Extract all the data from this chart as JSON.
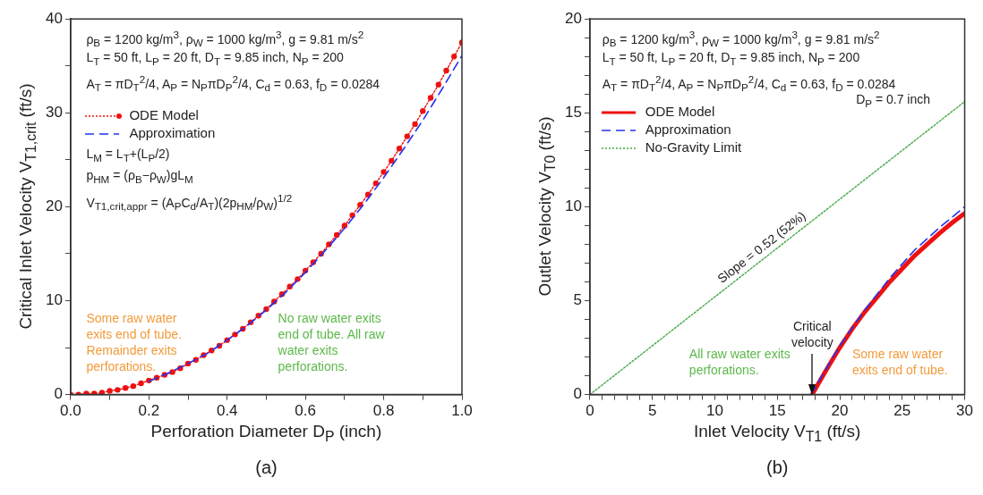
{
  "chart_data": [
    {
      "type": "line",
      "xlabel": "Perforation Diameter D$_{P}$ (inch)",
      "ylabel": "Critical Inlet Velocity V$_{T1,crit}$ (ft/s)",
      "xlim": [
        0,
        1
      ],
      "ylim": [
        0,
        40
      ],
      "xticks": [
        {
          "value": 0,
          "label": "0.0"
        },
        {
          "value": 0.1,
          "label": null
        },
        0.2,
        {
          "value": 0.3,
          "label": null
        },
        0.4,
        {
          "value": 0.5,
          "label": null
        },
        0.6,
        {
          "value": 0.7,
          "label": null
        },
        0.8,
        {
          "value": 0.9,
          "label": null
        },
        {
          "value": 1,
          "label": "1.0"
        }
      ],
      "yticks": [
        0,
        {
          "value": 5,
          "label": null
        },
        10,
        {
          "value": 15,
          "label": null
        },
        20,
        {
          "value": 25,
          "label": null
        },
        30,
        {
          "value": 35,
          "label": null
        },
        40
      ],
      "legend": "top left",
      "series": [
        {
          "name": "ODE Model",
          "color": "#ee1111",
          "line_style": "dotted",
          "marker": "circle",
          "x": [
            0,
            0.02,
            0.04,
            0.06,
            0.08,
            0.1,
            0.12,
            0.14,
            0.16,
            0.18,
            0.2,
            0.22,
            0.24,
            0.26,
            0.28,
            0.3,
            0.32,
            0.34,
            0.36,
            0.38,
            0.4,
            0.42,
            0.44,
            0.46,
            0.48,
            0.5,
            0.52,
            0.54,
            0.56,
            0.58,
            0.6,
            0.62,
            0.64,
            0.66,
            0.68,
            0.7,
            0.72,
            0.74,
            0.76,
            0.78,
            0.8,
            0.82,
            0.84,
            0.86,
            0.88,
            0.9,
            0.92,
            0.94,
            0.96,
            0.98,
            1
          ],
          "values": [
            0,
            0,
            0.1,
            0.1,
            0.2,
            0.4,
            0.5,
            0.7,
            0.9,
            1.2,
            1.5,
            1.8,
            2.1,
            2.4,
            2.8,
            3.3,
            3.7,
            4.2,
            4.7,
            5.2,
            5.8,
            6.4,
            7,
            7.7,
            8.4,
            9.1,
            9.9,
            10.7,
            11.5,
            12.3,
            13.2,
            14.1,
            15,
            16,
            17,
            18,
            19.1,
            20.2,
            21.3,
            22.5,
            23.7,
            24.9,
            26.2,
            27.5,
            28.8,
            30.2,
            31.6,
            33,
            34.5,
            36,
            37.5
          ]
        },
        {
          "name": "Approximation",
          "color": "#2233ee",
          "line_style": "dashed",
          "marker": "none",
          "x": [
            0.2,
            0.25,
            0.3,
            0.35,
            0.4,
            0.45,
            0.5,
            0.55,
            0.6,
            0.65,
            0.7,
            0.75,
            0.8,
            0.85,
            0.9,
            0.95,
            1
          ],
          "values": [
            1.4,
            2.3,
            3.3,
            4.4,
            5.8,
            7.3,
            9,
            10.9,
            13,
            15.3,
            17.7,
            20.3,
            23.1,
            26.1,
            29.2,
            32.6,
            36.1
          ]
        }
      ],
      "annotations": [
        "ρ$_{B}$ = 1200 kg/m$^{3}$, ρ$_{W}$ = 1000 kg/m$^{3}$, g = 9.81 m/s$^{2}$",
        "L$_{T}$ = 50 ft, L$_{P}$ = 20 ft, D$_{T}$ = 9.85 inch, N$_{P}$ = 200",
        "A$_{T}$ = πD$_{T}$$^{2}$/4, A$_{P}$ = N$_{P}$πD$_{P}$$^{2}$/4, C$_{d}$ = 0.63, f$_{D}$ = 0.0284",
        "L$_{M}$ = L$_{T}$+(L$_{P}$/2)",
        "p$_{HM}$ = (ρ$_{B}$−ρ$_{W}$)gL$_{M}$",
        "V$_{T1,crit,appr}$ = (A$_{P}$C$_{d}$/A$_{T}$)(2p$_{HM}$/ρ$_{W}$)$^{1/2}$",
        "Some raw water exits end of tube. Remainder exits perforations.",
        "No raw water exits end of tube. All raw water exits perforations.",
        "(a)"
      ]
    },
    {
      "type": "line",
      "xlabel": "Inlet Velocity V$_{T1}$ (ft/s)",
      "ylabel": "Outlet Velocity V$_{T0}$ (ft/s)",
      "xlim": [
        0,
        30
      ],
      "ylim": [
        0,
        20
      ],
      "xticks": [
        0,
        {
          "value": 1,
          "label": null
        },
        {
          "value": 2,
          "label": null
        },
        {
          "value": 3,
          "label": null
        },
        {
          "value": 4,
          "label": null
        },
        5,
        {
          "value": 6,
          "label": null
        },
        {
          "value": 7,
          "label": null
        },
        {
          "value": 8,
          "label": null
        },
        {
          "value": 9,
          "label": null
        },
        10,
        {
          "value": 11,
          "label": null
        },
        {
          "value": 12,
          "label": null
        },
        {
          "value": 13,
          "label": null
        },
        {
          "value": 14,
          "label": null
        },
        15,
        {
          "value": 16,
          "label": null
        },
        {
          "value": 17,
          "label": null
        },
        {
          "value": 18,
          "label": null
        },
        {
          "value": 19,
          "label": null
        },
        20,
        {
          "value": 21,
          "label": null
        },
        {
          "value": 22,
          "label": null
        },
        {
          "value": 23,
          "label": null
        },
        {
          "value": 24,
          "label": null
        },
        25,
        {
          "value": 26,
          "label": null
        },
        {
          "value": 27,
          "label": null
        },
        {
          "value": 28,
          "label": null
        },
        {
          "value": 29,
          "label": null
        },
        30
      ],
      "yticks": [
        0,
        {
          "value": 1,
          "label": null
        },
        {
          "value": 2,
          "label": null
        },
        {
          "value": 3,
          "label": null
        },
        {
          "value": 4,
          "label": null
        },
        5,
        {
          "value": 6,
          "label": null
        },
        {
          "value": 7,
          "label": null
        },
        {
          "value": 8,
          "label": null
        },
        {
          "value": 9,
          "label": null
        },
        10,
        {
          "value": 11,
          "label": null
        },
        {
          "value": 12,
          "label": null
        },
        {
          "value": 13,
          "label": null
        },
        {
          "value": 14,
          "label": null
        },
        15,
        {
          "value": 16,
          "label": null
        },
        {
          "value": 17,
          "label": null
        },
        {
          "value": 18,
          "label": null
        },
        {
          "value": 19,
          "label": null
        },
        20
      ],
      "legend": "top left",
      "series": [
        {
          "name": "ODE Model",
          "color": "#ee1111",
          "line_style": "solid",
          "marker": "none",
          "x": [
            17.8,
            18,
            19,
            20,
            21,
            22,
            23,
            24,
            25,
            26,
            27,
            28,
            29,
            30
          ],
          "values": [
            0,
            0.25,
            1.4,
            2.5,
            3.5,
            4.4,
            5.2,
            6,
            6.7,
            7.4,
            8,
            8.6,
            9.15,
            9.65
          ]
        },
        {
          "name": "Approximation",
          "color": "#2233ee",
          "line_style": "dashed",
          "marker": "none",
          "x": [
            17.7,
            20,
            22,
            24,
            26,
            28,
            30
          ],
          "values": [
            0,
            2.6,
            4.5,
            6.2,
            7.7,
            8.9,
            10
          ]
        },
        {
          "name": "No-Gravity Limit",
          "color": "#44aa44",
          "line_style": "dotted",
          "marker": "none",
          "x": [
            0,
            30
          ],
          "values": [
            0,
            15.6
          ]
        }
      ],
      "annotations": [
        "ρ$_{B}$ = 1200 kg/m$^{3}$, ρ$_{W}$ = 1000 kg/m$^{3}$, g = 9.81 m/s$^{2}$",
        "L$_{T}$ = 50 ft, L$_{P}$ = 20 ft, D$_{T}$ = 9.85 inch, N$_{P}$ = 200",
        "A$_{T}$ = πD$_{T}$$^{2}$/4, A$_{P}$ = N$_{P}$πD$_{P}$$^{2}$/4, C$_{d}$ = 0.63, f$_{D}$ = 0.0284",
        "D$_{P}$ = 0.7 inch",
        {
          "text": "Slope = 0.52 (52%)",
          "x": 14.3,
          "y": 7.4
        },
        {
          "text": "Critical velocity",
          "x": 17.8,
          "y": 0
        },
        "All raw water exits perforations.",
        "Some raw water exits end of tube.",
        "(b)"
      ]
    }
  ]
}
